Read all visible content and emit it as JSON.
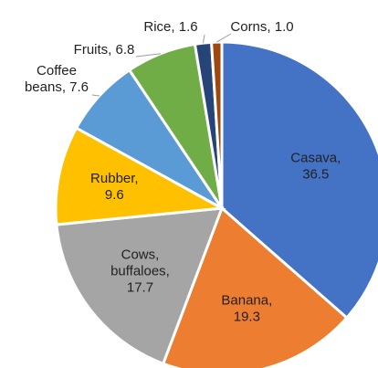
{
  "chart_data": {
    "type": "pie",
    "title": "",
    "start_angle_deg": 0,
    "direction": "clockwise",
    "legend": "none",
    "slices": [
      {
        "label": "Casava",
        "label_lines": [
          "Casava,",
          "36.5"
        ],
        "value": 36.5,
        "color": "#4472C4",
        "label_color": "#222222",
        "label_inside": true
      },
      {
        "label": "Banana",
        "label_lines": [
          "Banana,",
          "19.3"
        ],
        "value": 19.3,
        "color": "#ED7D31",
        "label_color": "#222222",
        "label_inside": true
      },
      {
        "label": "Cows, buffaloes",
        "label_lines": [
          "Cows,",
          "buffaloes,",
          "17.7"
        ],
        "value": 17.7,
        "color": "#A5A5A5",
        "label_color": "#222222",
        "label_inside": true
      },
      {
        "label": "Rubber",
        "label_lines": [
          "Rubber,",
          "9.6"
        ],
        "value": 9.6,
        "color": "#FFC000",
        "label_color": "#222222",
        "label_inside": true
      },
      {
        "label": "Coffee beans",
        "label_lines": [
          "Coffee",
          "beans, 7.6"
        ],
        "value": 7.6,
        "color": "#5B9BD5",
        "label_color": "#222222",
        "label_inside": false
      },
      {
        "label": "Fruits",
        "label_lines": [
          "Fruits, 6.8"
        ],
        "value": 6.8,
        "color": "#70AD47",
        "label_color": "#222222",
        "label_inside": false
      },
      {
        "label": "Rice",
        "label_lines": [
          "Rice, 1.6"
        ],
        "value": 1.6,
        "color": "#264478",
        "label_color": "#222222",
        "label_inside": false
      },
      {
        "label": "Corns",
        "label_lines": [
          "Corns, 1.0"
        ],
        "value": 1.0,
        "color": "#9E480E",
        "label_color": "#222222",
        "label_inside": false
      }
    ]
  }
}
